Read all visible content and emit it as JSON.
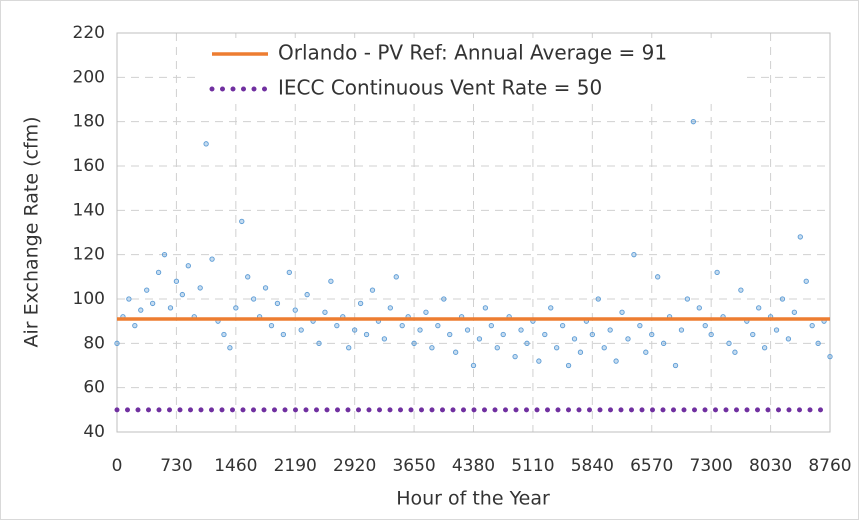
{
  "chart_data": {
    "type": "scatter",
    "xlabel": "Hour of the Year",
    "ylabel": "Air Exchange Rate (cfm)",
    "xlim": [
      0,
      8760
    ],
    "xticks": [
      0,
      730,
      1460,
      2190,
      2920,
      3650,
      4380,
      5110,
      5840,
      6570,
      7300,
      8030,
      8760
    ],
    "ylim": [
      40,
      220
    ],
    "yticks": [
      40,
      60,
      80,
      100,
      120,
      140,
      160,
      180,
      200,
      220
    ],
    "grid": true,
    "legend": "top",
    "series": [
      {
        "kind": "scatter",
        "color": "#5b9bd5",
        "x": [
          0,
          73,
          146,
          219,
          292,
          365,
          438,
          511,
          584,
          657,
          730,
          803,
          876,
          949,
          1022,
          1095,
          1168,
          1241,
          1314,
          1387,
          1460,
          1533,
          1606,
          1679,
          1752,
          1825,
          1898,
          1971,
          2044,
          2117,
          2190,
          2263,
          2336,
          2409,
          2482,
          2555,
          2628,
          2701,
          2774,
          2847,
          2920,
          2993,
          3066,
          3139,
          3212,
          3285,
          3358,
          3431,
          3504,
          3577,
          3650,
          3723,
          3796,
          3869,
          3942,
          4015,
          4088,
          4161,
          4234,
          4307,
          4380,
          4453,
          4526,
          4599,
          4672,
          4745,
          4818,
          4891,
          4964,
          5037,
          5110,
          5183,
          5256,
          5329,
          5402,
          5475,
          5548,
          5621,
          5694,
          5767,
          5840,
          5913,
          5986,
          6059,
          6132,
          6205,
          6278,
          6351,
          6424,
          6497,
          6570,
          6643,
          6716,
          6789,
          6862,
          6935,
          7008,
          7081,
          7154,
          7227,
          7300,
          7373,
          7446,
          7519,
          7592,
          7665,
          7738,
          7811,
          7884,
          7957,
          8030,
          8103,
          8176,
          8249,
          8322,
          8395,
          8468,
          8541,
          8614,
          8687,
          8760
        ],
        "values": [
          80,
          92,
          100,
          88,
          95,
          104,
          98,
          112,
          120,
          96,
          108,
          102,
          115,
          92,
          105,
          170,
          118,
          90,
          84,
          78,
          96,
          135,
          110,
          100,
          92,
          105,
          88,
          98,
          84,
          112,
          95,
          86,
          102,
          90,
          80,
          94,
          108,
          88,
          92,
          78,
          86,
          98,
          84,
          104,
          90,
          82,
          96,
          110,
          88,
          92,
          80,
          86,
          94,
          78,
          88,
          100,
          84,
          76,
          92,
          86,
          70,
          82,
          96,
          88,
          78,
          84,
          92,
          74,
          86,
          80,
          90,
          72,
          84,
          96,
          78,
          88,
          70,
          82,
          76,
          90,
          84,
          100,
          78,
          86,
          72,
          94,
          82,
          120,
          88,
          76,
          84,
          110,
          80,
          92,
          70,
          86,
          100,
          180,
          96,
          88,
          84,
          112,
          92,
          80,
          76,
          104,
          90,
          84,
          96,
          78,
          92,
          86,
          100,
          82,
          94,
          128,
          108,
          88,
          80,
          90,
          74
        ]
      },
      {
        "kind": "line",
        "name": "Orlando - PV Ref:  Annual Average = 91",
        "color": "#ed7d31",
        "x": [
          0,
          8760
        ],
        "values": [
          91,
          91
        ]
      },
      {
        "kind": "dotted",
        "name": "IECC Continuous Vent Rate = 50",
        "color": "#7030a0",
        "x": [
          0,
          8760
        ],
        "values": [
          50,
          50
        ]
      }
    ]
  }
}
